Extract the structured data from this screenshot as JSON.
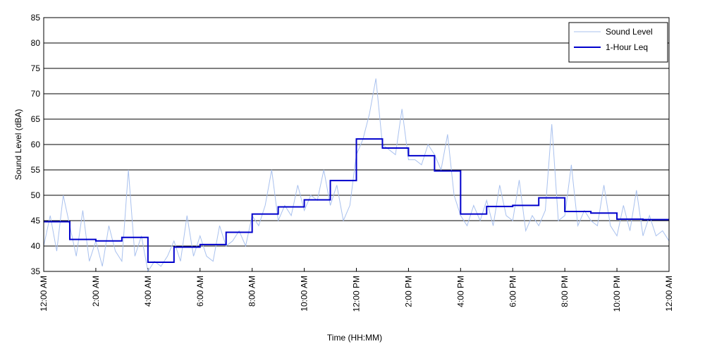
{
  "chart_data": {
    "type": "line",
    "xlabel": "Time (HH:MM)",
    "ylabel": "Sound Level (dBA)",
    "xlim": [
      0,
      24
    ],
    "xticks": [
      {
        "value": 0,
        "label": "12:00 AM"
      },
      {
        "value": 2,
        "label": "2:00 AM"
      },
      {
        "value": 4,
        "label": "4:00 AM"
      },
      {
        "value": 6,
        "label": "6:00 AM"
      },
      {
        "value": 8,
        "label": "8:00 AM"
      },
      {
        "value": 10,
        "label": "10:00 AM"
      },
      {
        "value": 12,
        "label": "12:00 PM"
      },
      {
        "value": 14,
        "label": "2:00 PM"
      },
      {
        "value": 16,
        "label": "4:00 PM"
      },
      {
        "value": 18,
        "label": "6:00 PM"
      },
      {
        "value": 20,
        "label": "8:00 PM"
      },
      {
        "value": 22,
        "label": "10:00 PM"
      },
      {
        "value": 24,
        "label": "12:00 AM"
      }
    ],
    "ylim": [
      35,
      85
    ],
    "yticks": [
      35,
      40,
      45,
      50,
      55,
      60,
      65,
      70,
      75,
      80,
      85
    ],
    "grid": true,
    "legend": "upper right",
    "series": [
      {
        "name": "Sound Level",
        "color": "#a9c1ee",
        "step": false,
        "x": [
          0,
          0.25,
          0.5,
          0.75,
          1,
          1.25,
          1.5,
          1.75,
          2,
          2.25,
          2.5,
          2.75,
          3,
          3.25,
          3.5,
          3.75,
          4,
          4.25,
          4.5,
          4.75,
          5,
          5.25,
          5.5,
          5.75,
          6,
          6.25,
          6.5,
          6.75,
          7,
          7.25,
          7.5,
          7.75,
          8,
          8.25,
          8.5,
          8.75,
          9,
          9.25,
          9.5,
          9.75,
          10,
          10.25,
          10.5,
          10.75,
          11,
          11.25,
          11.5,
          11.75,
          12,
          12.25,
          12.5,
          12.75,
          13,
          13.25,
          13.5,
          13.75,
          14,
          14.25,
          14.5,
          14.75,
          15,
          15.25,
          15.5,
          15.75,
          16,
          16.25,
          16.5,
          16.75,
          17,
          17.25,
          17.5,
          17.75,
          18,
          18.25,
          18.5,
          18.75,
          19,
          19.25,
          19.5,
          19.75,
          20,
          20.25,
          20.5,
          20.75,
          21,
          21.25,
          21.5,
          21.75,
          22,
          22.25,
          22.5,
          22.75,
          23,
          23.25,
          23.5,
          23.75,
          24
        ],
        "values": [
          40,
          46,
          39,
          50,
          44,
          38,
          47,
          37,
          41,
          36,
          44,
          39,
          37,
          55,
          38,
          42,
          35,
          37,
          36,
          38,
          41,
          37,
          46,
          38,
          42,
          38,
          37,
          44,
          40,
          41,
          43,
          40,
          46,
          44,
          48,
          55,
          45,
          48,
          46,
          52,
          47,
          50,
          49,
          55,
          48,
          52,
          45,
          48,
          58,
          61,
          66,
          73,
          60,
          59,
          58,
          67,
          57,
          57,
          56,
          60,
          58,
          55,
          62,
          50,
          46,
          44,
          48,
          45,
          49,
          44,
          52,
          46,
          45,
          53,
          43,
          46,
          44,
          47,
          64,
          45,
          46,
          56,
          44,
          47,
          45,
          44,
          52,
          44,
          42,
          48,
          43,
          51,
          42,
          46,
          42,
          43,
          41
        ]
      },
      {
        "name": "1-Hour Leq",
        "color": "#0000cc",
        "step": true,
        "x": [
          0,
          1,
          2,
          3,
          4,
          5,
          6,
          7,
          8,
          9,
          10,
          11,
          12,
          13,
          14,
          15,
          16,
          17,
          18,
          19,
          20,
          21,
          22,
          23
        ],
        "values": [
          44.8,
          41.3,
          41.0,
          41.7,
          36.8,
          39.8,
          40.3,
          42.7,
          46.3,
          47.7,
          49.1,
          52.9,
          61.1,
          59.3,
          57.8,
          54.8,
          46.3,
          47.8,
          48.0,
          49.5,
          46.8,
          46.5,
          45.3,
          45.2
        ]
      }
    ]
  }
}
